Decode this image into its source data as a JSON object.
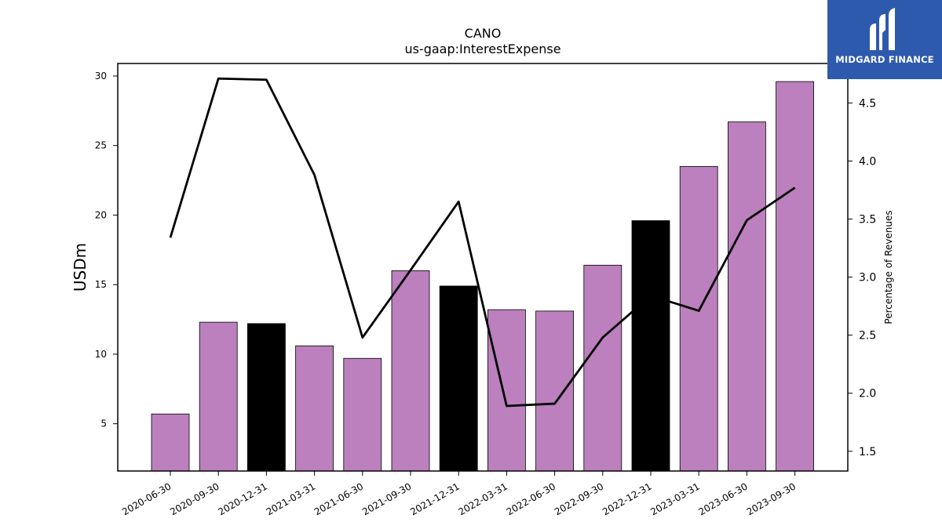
{
  "chart_data": {
    "type": "bar",
    "title": "CANO",
    "subtitle": "us-gaap:InterestExpense",
    "ylabel": "USDm",
    "y2label": "Percentage of Revenues",
    "categories": [
      "2020-06-30",
      "2020-09-30",
      "2020-12-31",
      "2021-03-31",
      "2021-06-30",
      "2021-09-30",
      "2021-12-31",
      "2022-03-31",
      "2022-06-30",
      "2022-09-30",
      "2022-12-31",
      "2023-03-31",
      "2023-06-30",
      "2023-09-30"
    ],
    "series": [
      {
        "type": "bar",
        "values": [
          5.7,
          12.3,
          12.2,
          10.6,
          9.7,
          16.0,
          14.9,
          13.2,
          13.1,
          16.4,
          19.6,
          23.5,
          26.7,
          29.6
        ],
        "colors": [
          "#bb80bd",
          "#bb80bd",
          "#000000",
          "#bb80bd",
          "#bb80bd",
          "#bb80bd",
          "#000000",
          "#bb80bd",
          "#bb80bd",
          "#bb80bd",
          "#000000",
          "#bb80bd",
          "#bb80bd",
          "#bb80bd"
        ]
      },
      {
        "type": "line",
        "axis": "right",
        "values": [
          3.34,
          4.71,
          4.7,
          3.88,
          2.48,
          3.06,
          3.65,
          1.89,
          1.91,
          2.48,
          2.84,
          2.71,
          3.49,
          3.77
        ],
        "color": "#000000"
      }
    ],
    "ylim": [
      1.6,
      30.9
    ],
    "yticks": [
      5,
      10,
      15,
      20,
      25,
      30
    ],
    "y2lim": [
      1.33,
      4.84
    ],
    "y2ticks": [
      1.5,
      2.0,
      2.5,
      3.0,
      3.5,
      4.0,
      4.5
    ],
    "grid": false,
    "legend": "none"
  },
  "logo": {
    "text": "MIDGARD FINANCE",
    "color": "#2e5aae"
  }
}
